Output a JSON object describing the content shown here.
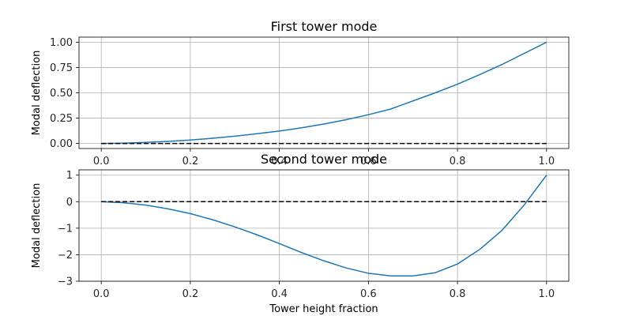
{
  "colors": {
    "background": "#ffffff",
    "axes_edge": "#000000",
    "grid": "#b0b0b0",
    "mode_line": "#1f77b4",
    "zero_line": "#000000"
  },
  "chart_data": [
    {
      "type": "line",
      "title": "First tower mode",
      "xlabel": "",
      "ylabel": "Modal deflection",
      "xlim": [
        -0.05,
        1.05
      ],
      "ylim": [
        -0.05,
        1.05
      ],
      "xticks": [
        0.0,
        0.2,
        0.4,
        0.6,
        0.8,
        1.0
      ],
      "xtick_labels": [
        "0.0",
        "0.2",
        "0.4",
        "0.6",
        "0.8",
        "1.0"
      ],
      "yticks": [
        0.0,
        0.25,
        0.5,
        0.75,
        1.0
      ],
      "ytick_labels": [
        "0.00",
        "0.25",
        "0.50",
        "0.75",
        "1.00"
      ],
      "grid": true,
      "series": [
        {
          "x": [
            0.0,
            0.05,
            0.1,
            0.15,
            0.2,
            0.25,
            0.3,
            0.35,
            0.4,
            0.45,
            0.5,
            0.55,
            0.6,
            0.65,
            0.7,
            0.75,
            0.8,
            0.85,
            0.9,
            0.95,
            1.0
          ],
          "y": [
            0.0,
            0.003,
            0.01,
            0.02,
            0.034,
            0.051,
            0.072,
            0.096,
            0.123,
            0.155,
            0.192,
            0.235,
            0.284,
            0.34,
            0.42,
            0.5,
            0.585,
            0.68,
            0.78,
            0.89,
            1.0
          ],
          "color": "#1f77b4",
          "style": "solid"
        },
        {
          "x": [
            0.0,
            1.0
          ],
          "y": [
            0.0,
            0.0
          ],
          "color": "#000000",
          "style": "dashed"
        }
      ]
    },
    {
      "type": "line",
      "title": "Second tower mode",
      "xlabel": "Tower height fraction",
      "ylabel": "Modal deflection",
      "xlim": [
        -0.05,
        1.05
      ],
      "ylim": [
        -3.0,
        1.2
      ],
      "xticks": [
        0.0,
        0.2,
        0.4,
        0.6,
        0.8,
        1.0
      ],
      "xtick_labels": [
        "0.0",
        "0.2",
        "0.4",
        "0.6",
        "0.8",
        "1.0"
      ],
      "yticks": [
        -3,
        -2,
        -1,
        0,
        1
      ],
      "ytick_labels": [
        "−3",
        "−2",
        "−1",
        "0",
        "1"
      ],
      "grid": true,
      "series": [
        {
          "x": [
            0.0,
            0.05,
            0.1,
            0.15,
            0.2,
            0.25,
            0.3,
            0.35,
            0.4,
            0.45,
            0.5,
            0.55,
            0.6,
            0.65,
            0.7,
            0.75,
            0.8,
            0.85,
            0.9,
            0.95,
            1.0
          ],
          "y": [
            0.0,
            -0.04,
            -0.13,
            -0.27,
            -0.45,
            -0.68,
            -0.95,
            -1.25,
            -1.58,
            -1.92,
            -2.23,
            -2.5,
            -2.7,
            -2.8,
            -2.8,
            -2.68,
            -2.35,
            -1.8,
            -1.08,
            -0.12,
            1.0
          ],
          "color": "#1f77b4",
          "style": "solid"
        },
        {
          "x": [
            0.0,
            1.0
          ],
          "y": [
            0.0,
            0.0
          ],
          "color": "#000000",
          "style": "dashed"
        }
      ]
    }
  ]
}
